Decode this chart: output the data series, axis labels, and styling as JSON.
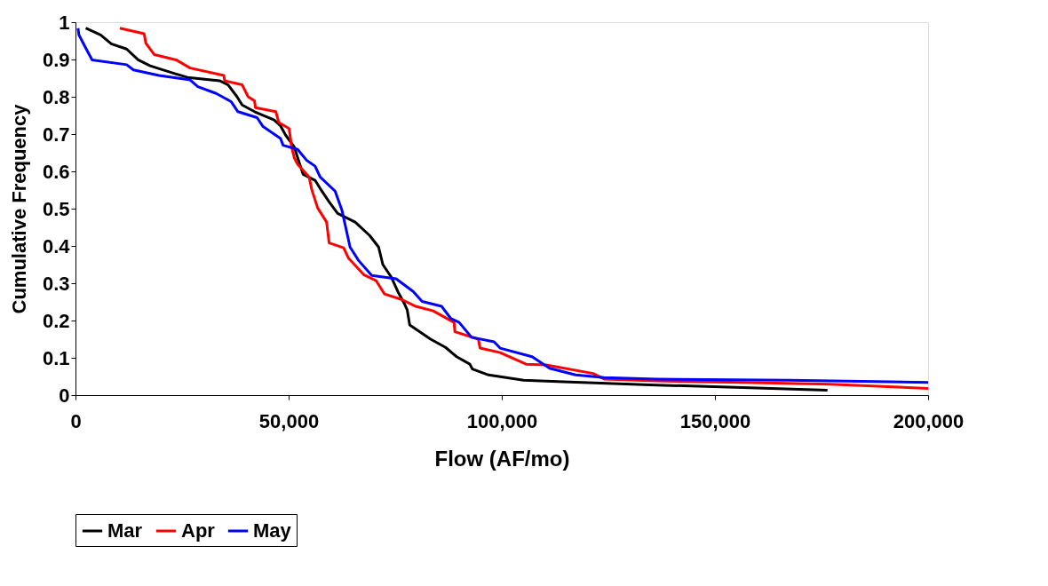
{
  "chart_data": {
    "type": "line",
    "xlabel": "Flow (AF/mo)",
    "ylabel": "Cumulative Frequency",
    "xlim": [
      0,
      200000
    ],
    "xticks": [
      0,
      {
        "value": 50000,
        "label": "50,000"
      },
      {
        "value": 100000,
        "label": "100,000"
      },
      {
        "value": 150000,
        "label": "150,000"
      },
      {
        "value": 200000,
        "label": "200,000"
      }
    ],
    "ylim": [
      0,
      1
    ],
    "yticks": [
      {
        "value": 0,
        "label": "0"
      },
      0.1,
      0.2,
      0.3,
      0.4,
      0.5,
      0.6,
      0.7,
      0.8,
      0.9,
      {
        "value": 1,
        "label": "1"
      }
    ],
    "grid": false,
    "legend": "bottom",
    "marker": "none",
    "line_style": "solid",
    "series": [
      {
        "name": "Mar",
        "color": "#000000",
        "x": [
          2400,
          5900,
          8400,
          12000,
          14700,
          17500,
          23600,
          26300,
          33800,
          35800,
          37900,
          39100,
          42000,
          46600,
          48100,
          49300,
          51300,
          52100,
          53400,
          56200,
          57400,
          59500,
          61500,
          65600,
          69000,
          71100,
          72100,
          74100,
          75600,
          77200,
          77800,
          78400,
          83300,
          86800,
          89400,
          92500,
          93100,
          96900,
          105100,
          114500,
          136300,
          156600,
          176400
        ],
        "values": [
          0.984,
          0.966,
          0.942,
          0.928,
          0.899,
          0.883,
          0.861,
          0.852,
          0.843,
          0.832,
          0.8,
          0.778,
          0.76,
          0.738,
          0.722,
          0.697,
          0.666,
          0.637,
          0.592,
          0.576,
          0.554,
          0.518,
          0.487,
          0.464,
          0.428,
          0.397,
          0.35,
          0.316,
          0.278,
          0.244,
          0.229,
          0.188,
          0.15,
          0.128,
          0.103,
          0.083,
          0.07,
          0.054,
          0.04,
          0.036,
          0.027,
          0.02,
          0.013
        ]
      },
      {
        "name": "Apr",
        "color": "#ff0000",
        "x": [
          10400,
          16100,
          16500,
          18500,
          23600,
          26900,
          34800,
          35000,
          39100,
          40500,
          42000,
          42200,
          47000,
          47700,
          50100,
          50700,
          51300,
          52100,
          54800,
          55400,
          56800,
          58900,
          59500,
          62900,
          64000,
          67600,
          70500,
          72500,
          76600,
          79800,
          83900,
          88800,
          89000,
          94500,
          94900,
          99600,
          105700,
          110400,
          121400,
          124000,
          136300,
          156600,
          177000,
          200000
        ],
        "values": [
          0.984,
          0.969,
          0.944,
          0.913,
          0.899,
          0.877,
          0.857,
          0.843,
          0.832,
          0.8,
          0.789,
          0.771,
          0.76,
          0.731,
          0.715,
          0.666,
          0.637,
          0.619,
          0.585,
          0.552,
          0.502,
          0.464,
          0.408,
          0.395,
          0.368,
          0.323,
          0.307,
          0.271,
          0.256,
          0.238,
          0.226,
          0.195,
          0.17,
          0.15,
          0.126,
          0.114,
          0.083,
          0.081,
          0.058,
          0.043,
          0.038,
          0.034,
          0.029,
          0.018
        ]
      },
      {
        "name": "May",
        "color": "#0000ff",
        "x": [
          600,
          800,
          2200,
          3900,
          12000,
          13600,
          19600,
          26900,
          28700,
          33000,
          36500,
          38100,
          42600,
          44000,
          48100,
          48700,
          52100,
          54200,
          56200,
          57400,
          60900,
          62500,
          64400,
          66400,
          69500,
          75200,
          79200,
          81300,
          85900,
          88000,
          90000,
          92900,
          98200,
          99600,
          107100,
          111200,
          117300,
          124000,
          136300,
          167400,
          200000
        ],
        "values": [
          0.984,
          0.966,
          0.935,
          0.899,
          0.886,
          0.872,
          0.857,
          0.845,
          0.827,
          0.809,
          0.787,
          0.76,
          0.744,
          0.72,
          0.688,
          0.67,
          0.659,
          0.63,
          0.614,
          0.585,
          0.547,
          0.496,
          0.397,
          0.361,
          0.321,
          0.312,
          0.278,
          0.251,
          0.238,
          0.206,
          0.195,
          0.155,
          0.143,
          0.126,
          0.103,
          0.072,
          0.054,
          0.047,
          0.043,
          0.04,
          0.034
        ]
      }
    ]
  }
}
